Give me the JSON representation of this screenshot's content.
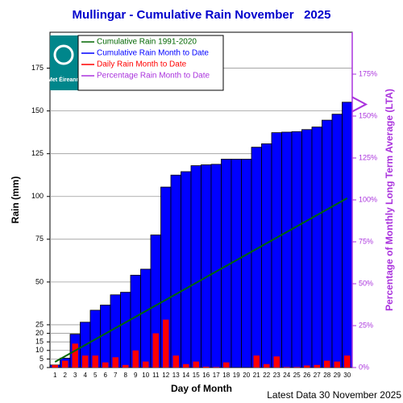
{
  "chart_data": {
    "type": "bar",
    "title": "Mullingar - Cumulative Rain November   2025",
    "ylabel": "Rain (mm)",
    "xlabel": "Day of Month",
    "y2label": "Percentage of Monthly Long Term Average (LTA)",
    "footer": "Latest Data 30 November 2025",
    "logo_text": "Met Éireann",
    "categories": [
      "1",
      "2",
      "3",
      "4",
      "5",
      "6",
      "7",
      "8",
      "9",
      "10",
      "11",
      "12",
      "13",
      "14",
      "15",
      "16",
      "17",
      "18",
      "19",
      "20",
      "21",
      "22",
      "23",
      "24",
      "25",
      "26",
      "27",
      "28",
      "29",
      "30"
    ],
    "series": [
      {
        "name": "Cumulative Rain 1991-2020",
        "color": "#006600",
        "kind": "line",
        "values": [
          3.3,
          6.6,
          9.9,
          13.2,
          16.5,
          19.8,
          23.1,
          26.4,
          29.7,
          33,
          36.3,
          39.6,
          42.9,
          46.2,
          49.5,
          52.8,
          56.1,
          59.4,
          62.7,
          66,
          69.3,
          72.6,
          75.9,
          79.2,
          82.5,
          85.8,
          89.1,
          92.4,
          95.7,
          99
        ]
      },
      {
        "name": "Cumulative Rain Month to Date",
        "color": "#0000ff",
        "kind": "bar",
        "values": [
          1.5,
          5.5,
          19.5,
          26.5,
          33.5,
          36.5,
          42.5,
          44,
          54,
          57.5,
          77.5,
          105.5,
          112.5,
          114.5,
          118,
          118.5,
          118.8,
          121.8,
          121.8,
          121.8,
          128.8,
          130.8,
          137.3,
          137.6,
          137.9,
          139.1,
          140.6,
          144.6,
          148.1,
          155.1
        ]
      },
      {
        "name": "Daily Rain Month to Date",
        "color": "#ff0000",
        "kind": "thinbar",
        "values": [
          1.5,
          4,
          14,
          7,
          7,
          3,
          6,
          1.5,
          10,
          3.5,
          20,
          28,
          7,
          2,
          3.5,
          0.5,
          0.3,
          3,
          0,
          0,
          7,
          2,
          6.5,
          0.3,
          0.3,
          1.2,
          1.5,
          4,
          3.5,
          7
        ]
      },
      {
        "name": "Percentage Rain Month to Date",
        "color": "#aa33dd",
        "kind": "arrow",
        "axis": "y2",
        "values": [
          null,
          null,
          null,
          null,
          null,
          null,
          null,
          null,
          null,
          null,
          null,
          null,
          null,
          null,
          null,
          null,
          null,
          null,
          null,
          null,
          null,
          null,
          null,
          null,
          null,
          null,
          null,
          null,
          null,
          157
        ]
      }
    ],
    "ylim": [
      0,
      196
    ],
    "yticks": [
      0,
      5,
      10,
      15,
      20,
      25,
      50,
      75,
      100,
      125,
      150,
      175
    ],
    "y2lim": [
      0,
      200
    ],
    "y2ticks": [
      {
        "value": 0,
        "label": "0%"
      },
      {
        "value": 25,
        "label": "25%"
      },
      {
        "value": 50,
        "label": "50%"
      },
      {
        "value": 75,
        "label": "75%"
      },
      {
        "value": 100,
        "label": "100%"
      },
      {
        "value": 125,
        "label": "125%"
      },
      {
        "value": 150,
        "label": "150%"
      },
      {
        "value": 175,
        "label": "175%"
      }
    ],
    "grid": true
  }
}
